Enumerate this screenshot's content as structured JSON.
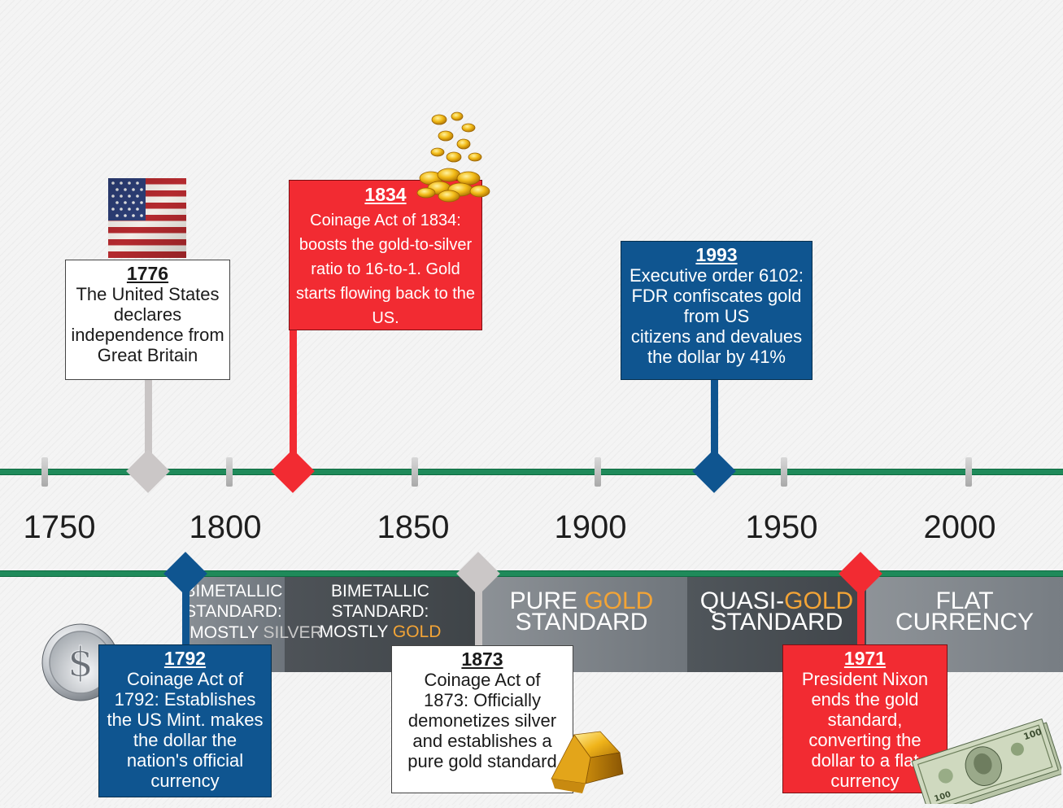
{
  "axis": {
    "years": [
      "1750",
      "1800",
      "1850",
      "1900",
      "1950",
      "2000"
    ]
  },
  "events": {
    "e1776": {
      "year": "1776",
      "line1": "The United States",
      "line2": "declares",
      "line3": "independence from",
      "line4": "Great Britain"
    },
    "e1834": {
      "year": "1834",
      "line1": "Coinage Act of 1834:",
      "line2": "boosts the gold-to-silver",
      "line3": "ratio to 16-to-1. Gold",
      "line4": "starts flowing back to the",
      "line5": "US."
    },
    "e1993": {
      "year": "1993",
      "line1": "Executive order 6102:",
      "line2": "FDR confiscates gold",
      "line3": "from US",
      "line4": "citizens and devalues",
      "line5": "the dollar by 41%"
    },
    "e1792": {
      "year": "1792",
      "line1": "Coinage Act of",
      "line2": "1792: Establishes",
      "line3": "the US Mint. makes",
      "line4": "the dollar the",
      "line5": "nation's official",
      "line6": "currency"
    },
    "e1873": {
      "year": "1873",
      "line1": "Coinage Act of",
      "line2": "1873: Officially",
      "line3": "demonetizes silver",
      "line4": "and establishes a",
      "line5": "pure gold standard"
    },
    "e1971": {
      "year": "1971",
      "line1": "President Nixon",
      "line2": "ends the gold",
      "line3": "standard,",
      "line4": "converting the",
      "line5": "dollar to a flat",
      "line6": "currency"
    }
  },
  "bands": {
    "b1": {
      "l1": "BIMETALLIC",
      "l2": "STANDARD:",
      "l3a": "MOSTLY ",
      "l3b": "SILVER"
    },
    "b2": {
      "l1": "BIMETALLIC",
      "l2": "STANDARD:",
      "l3a": "MOSTLY ",
      "l3b": "GOLD"
    },
    "b3": {
      "l1a": "PURE ",
      "l1b": "GOLD",
      "l2": "STANDARD"
    },
    "b4": {
      "l1a": "QUASI-",
      "l1b": "GOLD",
      "l2": "STANDARD"
    },
    "b5": {
      "l1": "FLAT",
      "l2": "CURRENCY"
    }
  },
  "icons": [
    "us-flag-icon",
    "gold-coins-icon",
    "silver-dollar-coin-icon",
    "gold-bar-icon",
    "dollar-bills-icon"
  ],
  "colors": {
    "red": "#f22b32",
    "blue": "#0f5590",
    "green": "#1f8a5a",
    "gold": "#f3a436",
    "gray": "#c9c9c9"
  }
}
